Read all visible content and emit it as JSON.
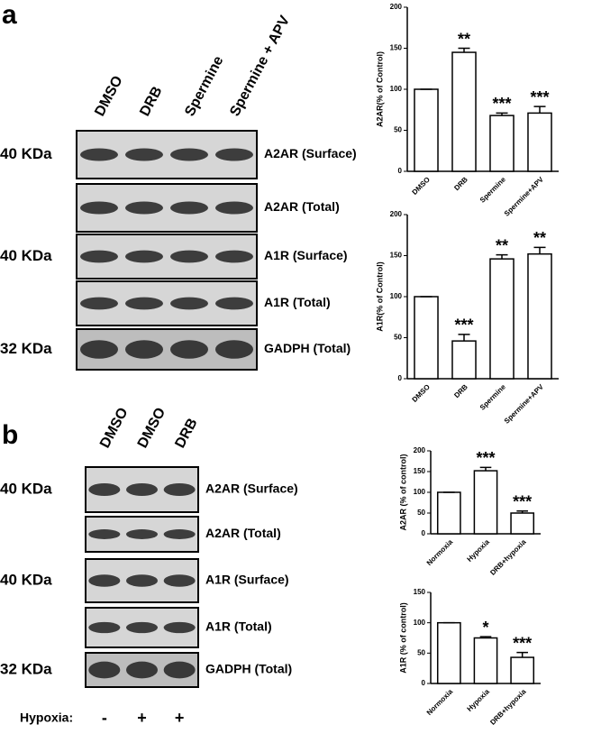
{
  "panel_a": {
    "label": "a",
    "lanes": [
      "DMSO",
      "DRB",
      "Spermine",
      "Spermine + APV"
    ],
    "blots": [
      {
        "name": "A2AR (Surface)",
        "mw": "40 KDa"
      },
      {
        "name": "A2AR (Total)"
      },
      {
        "name": "A1R (Surface)",
        "mw": "40 KDa"
      },
      {
        "name": "A1R (Total)"
      },
      {
        "name": "GADPH (Total)",
        "mw": "32 KDa"
      }
    ]
  },
  "panel_b": {
    "label": "b",
    "lanes": [
      "DMSO",
      "DMSO",
      "DRB"
    ],
    "blots": [
      {
        "name": "A2AR (Surface)",
        "mw": "40 KDa"
      },
      {
        "name": "A2AR (Total)"
      },
      {
        "name": "A1R (Surface)",
        "mw": "40 KDa"
      },
      {
        "name": "A1R (Total)"
      },
      {
        "name": "GADPH (Total)",
        "mw": "32 KDa"
      }
    ],
    "condition_label": "Hypoxia:",
    "conditions": [
      "-",
      "+",
      "+"
    ]
  },
  "chart_data": [
    {
      "type": "bar",
      "ylabel": "A2AR(% of Control)",
      "categories": [
        "DMSO",
        "DRB",
        "Spermine",
        "Spermine+APV"
      ],
      "values": [
        100,
        145,
        68,
        71
      ],
      "errors": [
        0,
        5,
        3,
        8
      ],
      "significance": [
        null,
        "**",
        "***",
        "***"
      ],
      "ylim": [
        0,
        200
      ],
      "yticks": [
        0,
        50,
        100,
        150,
        200
      ],
      "color": "#ffffff"
    },
    {
      "type": "bar",
      "ylabel": "A1R(% of Control)",
      "categories": [
        "DMSO",
        "DRB",
        "Spermine",
        "Spermine+APV"
      ],
      "values": [
        100,
        46,
        146,
        152
      ],
      "errors": [
        0,
        8,
        5,
        8
      ],
      "significance": [
        null,
        "***",
        "**",
        "**"
      ],
      "ylim": [
        0,
        200
      ],
      "yticks": [
        0,
        50,
        100,
        150,
        200
      ],
      "color": "#ffffff"
    },
    {
      "type": "bar",
      "ylabel": "A2AR (% of control)",
      "categories": [
        "Normoxia",
        "Hypoxia",
        "DRB+hypoxia"
      ],
      "values": [
        100,
        152,
        50
      ],
      "errors": [
        0,
        8,
        5
      ],
      "significance": [
        null,
        "***",
        "***"
      ],
      "ylim": [
        0,
        200
      ],
      "yticks": [
        0,
        50,
        100,
        150,
        200
      ],
      "color": "#ffffff"
    },
    {
      "type": "bar",
      "ylabel": "A1R (% of control)",
      "categories": [
        "Normoxia",
        "Hypoxia",
        "DRB+hypoxia"
      ],
      "values": [
        100,
        75,
        43
      ],
      "errors": [
        0,
        2,
        8
      ],
      "significance": [
        null,
        "*",
        "***"
      ],
      "ylim": [
        0,
        150
      ],
      "yticks": [
        0,
        50,
        100,
        150
      ],
      "color": "#ffffff"
    }
  ]
}
